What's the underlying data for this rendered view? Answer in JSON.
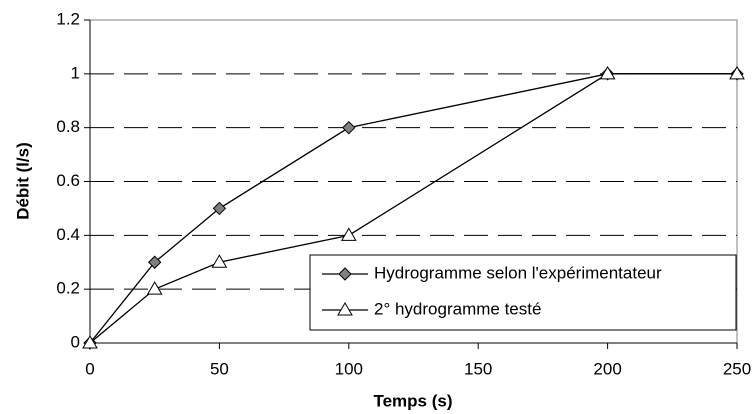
{
  "chart_data": {
    "type": "line",
    "x": [
      0,
      25,
      50,
      100,
      200,
      250
    ],
    "series": [
      {
        "name": "Hydrogramme selon l'expérimentateur",
        "color": "#808080",
        "marker": "diamond",
        "values": [
          0,
          0.3,
          0.5,
          0.8,
          1,
          1
        ]
      },
      {
        "name": "2° hydrogramme testé",
        "color": "#ffffff",
        "marker": "triangle",
        "values": [
          0,
          0.2,
          0.3,
          0.4,
          1,
          1
        ]
      }
    ],
    "xlabel": "Temps (s)",
    "ylabel": "Débit (l/s)",
    "xlim": [
      0,
      250
    ],
    "xticks": [
      0,
      50,
      100,
      150,
      200,
      250
    ],
    "ylim": [
      0,
      1.2
    ],
    "yticks": [
      0,
      0.2,
      0.4,
      0.6,
      0.8,
      1,
      1.2
    ],
    "grid": true,
    "legend": "lower right"
  }
}
